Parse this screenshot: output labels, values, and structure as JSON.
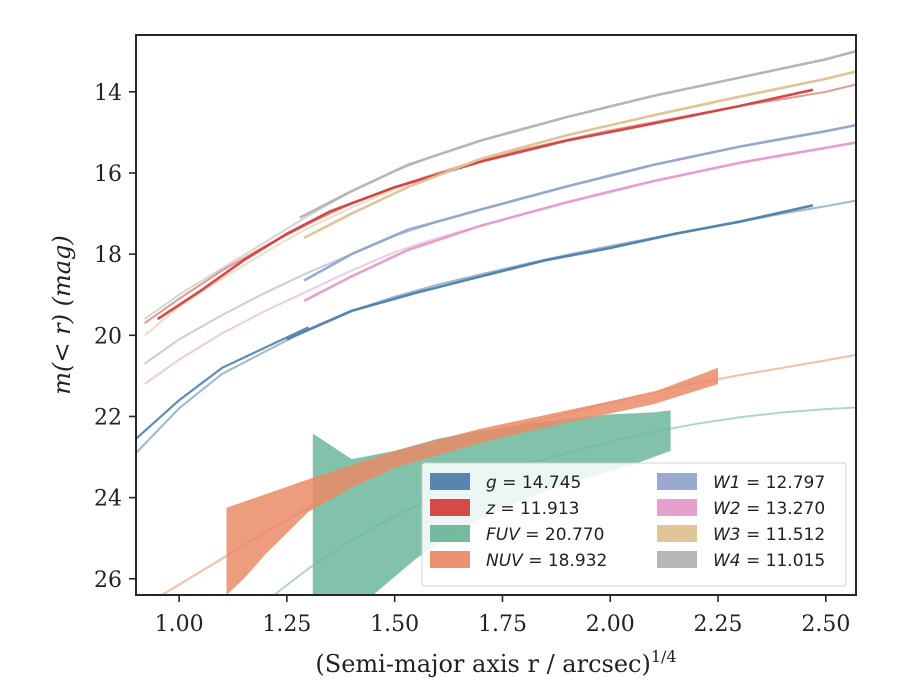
{
  "chart_data": {
    "type": "line",
    "xlabel": "(Semi-major axis r / arcsec)",
    "xlabel_sup": "1/4",
    "ylabel": "m(< r) (mag)",
    "xlim": [
      0.9,
      2.57
    ],
    "ylim": [
      26.4,
      12.6
    ],
    "y_inverted": true,
    "xticks": [
      1.0,
      1.25,
      1.5,
      1.75,
      2.0,
      2.25,
      2.5
    ],
    "xtick_labels": [
      "1.00",
      "1.25",
      "1.50",
      "1.75",
      "2.00",
      "2.25",
      "2.50"
    ],
    "yticks": [
      14,
      16,
      18,
      20,
      22,
      24,
      26
    ],
    "ytick_labels": [
      "14",
      "16",
      "18",
      "20",
      "22",
      "24",
      "26"
    ],
    "grid": false,
    "legend_position": "lower-right",
    "legend": [
      {
        "band": "g",
        "value": "14.745",
        "color": "#4c7fac"
      },
      {
        "band": "z",
        "value": "11.913",
        "color": "#d43f3f"
      },
      {
        "band": "FUV",
        "value": "20.770",
        "color": "#6db79b"
      },
      {
        "band": "NUV",
        "value": "18.932",
        "color": "#ea8b66"
      },
      {
        "band": "W1",
        "value": "12.797",
        "color": "#93a4cc"
      },
      {
        "band": "W2",
        "value": "13.270",
        "color": "#e39ccb"
      },
      {
        "band": "W3",
        "value": "11.512",
        "color": "#dfc294"
      },
      {
        "band": "W4",
        "value": "11.015",
        "color": "#b3b3b3"
      }
    ],
    "series": [
      {
        "band": "g",
        "color": "#4c7fac",
        "model": [
          [
            0.9,
            22.9
          ],
          [
            1.0,
            21.8
          ],
          [
            1.1,
            20.95
          ],
          [
            1.2,
            20.4
          ],
          [
            1.3,
            19.85
          ],
          [
            1.4,
            19.4
          ],
          [
            1.5,
            19.05
          ],
          [
            1.6,
            18.75
          ],
          [
            1.7,
            18.5
          ],
          [
            1.8,
            18.25
          ],
          [
            1.9,
            18.02
          ],
          [
            2.0,
            17.8
          ],
          [
            2.1,
            17.6
          ],
          [
            2.2,
            17.4
          ],
          [
            2.3,
            17.2
          ],
          [
            2.4,
            17.0
          ],
          [
            2.5,
            16.82
          ],
          [
            2.57,
            16.68
          ]
        ],
        "model_offset": [
          [
            0.9,
            22.55
          ],
          [
            1.0,
            21.6
          ],
          [
            1.1,
            20.8
          ],
          [
            1.2,
            20.3
          ],
          [
            1.3,
            19.8
          ]
        ],
        "measured": [
          [
            1.25,
            20.1
          ],
          [
            1.4,
            19.4
          ],
          [
            1.55,
            18.95
          ],
          [
            1.7,
            18.55
          ],
          [
            1.85,
            18.15
          ],
          [
            2.0,
            17.85
          ],
          [
            2.15,
            17.5
          ],
          [
            2.3,
            17.2
          ],
          [
            2.47,
            16.8
          ]
        ]
      },
      {
        "band": "z",
        "color": "#d43f3f",
        "model": [
          [
            0.92,
            19.7
          ],
          [
            1.0,
            19.1
          ],
          [
            1.1,
            18.4
          ],
          [
            1.2,
            17.8
          ],
          [
            1.3,
            17.25
          ],
          [
            1.4,
            16.75
          ],
          [
            1.5,
            16.35
          ],
          [
            1.6,
            16.0
          ],
          [
            1.7,
            15.7
          ],
          [
            1.8,
            15.42
          ],
          [
            1.9,
            15.18
          ],
          [
            2.0,
            14.95
          ],
          [
            2.1,
            14.75
          ],
          [
            2.2,
            14.55
          ],
          [
            2.3,
            14.35
          ],
          [
            2.4,
            14.18
          ],
          [
            2.5,
            14.0
          ],
          [
            2.57,
            13.82
          ]
        ],
        "measured": [
          [
            0.95,
            19.6
          ],
          [
            1.05,
            18.9
          ],
          [
            1.15,
            18.15
          ],
          [
            1.25,
            17.5
          ],
          [
            1.35,
            16.95
          ],
          [
            1.5,
            16.35
          ],
          [
            1.7,
            15.72
          ],
          [
            1.9,
            15.2
          ],
          [
            2.1,
            14.78
          ],
          [
            2.3,
            14.35
          ],
          [
            2.47,
            13.95
          ]
        ]
      },
      {
        "band": "W1",
        "color": "#93a4cc",
        "model": [
          [
            0.92,
            20.7
          ],
          [
            1.0,
            20.1
          ],
          [
            1.1,
            19.5
          ],
          [
            1.2,
            18.95
          ],
          [
            1.3,
            18.45
          ],
          [
            1.4,
            18.0
          ],
          [
            1.5,
            17.55
          ],
          [
            1.6,
            17.2
          ],
          [
            1.7,
            16.9
          ],
          [
            1.8,
            16.6
          ],
          [
            1.9,
            16.33
          ],
          [
            2.0,
            16.05
          ],
          [
            2.1,
            15.8
          ],
          [
            2.2,
            15.57
          ],
          [
            2.3,
            15.35
          ],
          [
            2.4,
            15.15
          ],
          [
            2.5,
            14.97
          ],
          [
            2.57,
            14.82
          ]
        ],
        "measured": [
          [
            1.29,
            18.65
          ],
          [
            1.4,
            18.0
          ],
          [
            1.53,
            17.4
          ],
          [
            1.7,
            16.9
          ],
          [
            1.9,
            16.33
          ],
          [
            2.1,
            15.8
          ],
          [
            2.3,
            15.35
          ],
          [
            2.5,
            14.97
          ],
          [
            2.57,
            14.82
          ]
        ]
      },
      {
        "band": "W2",
        "color": "#e39ccb",
        "model": [
          [
            0.92,
            21.2
          ],
          [
            1.0,
            20.6
          ],
          [
            1.1,
            19.95
          ],
          [
            1.2,
            19.4
          ],
          [
            1.3,
            18.9
          ],
          [
            1.4,
            18.4
          ],
          [
            1.5,
            17.95
          ],
          [
            1.6,
            17.6
          ],
          [
            1.7,
            17.3
          ],
          [
            1.8,
            17.0
          ],
          [
            1.9,
            16.72
          ],
          [
            2.0,
            16.45
          ],
          [
            2.1,
            16.2
          ],
          [
            2.2,
            15.97
          ],
          [
            2.3,
            15.75
          ],
          [
            2.4,
            15.55
          ],
          [
            2.5,
            15.38
          ],
          [
            2.57,
            15.25
          ]
        ],
        "measured": [
          [
            1.29,
            19.15
          ],
          [
            1.4,
            18.55
          ],
          [
            1.53,
            17.9
          ],
          [
            1.7,
            17.3
          ],
          [
            1.9,
            16.72
          ],
          [
            2.1,
            16.2
          ],
          [
            2.3,
            15.75
          ],
          [
            2.5,
            15.38
          ],
          [
            2.57,
            15.25
          ]
        ]
      },
      {
        "band": "W3",
        "color": "#dfc294",
        "model": [
          [
            0.92,
            20.0
          ],
          [
            1.0,
            19.3
          ],
          [
            1.1,
            18.6
          ],
          [
            1.2,
            17.95
          ],
          [
            1.3,
            17.35
          ],
          [
            1.4,
            16.85
          ],
          [
            1.5,
            16.4
          ],
          [
            1.6,
            16.0
          ],
          [
            1.7,
            15.65
          ],
          [
            1.8,
            15.35
          ],
          [
            1.9,
            15.07
          ],
          [
            2.0,
            14.82
          ],
          [
            2.1,
            14.58
          ],
          [
            2.2,
            14.35
          ],
          [
            2.3,
            14.12
          ],
          [
            2.4,
            13.9
          ],
          [
            2.5,
            13.68
          ],
          [
            2.57,
            13.5
          ]
        ],
        "measured": [
          [
            1.29,
            17.6
          ],
          [
            1.4,
            17.0
          ],
          [
            1.53,
            16.35
          ],
          [
            1.7,
            15.65
          ],
          [
            1.9,
            15.07
          ],
          [
            2.1,
            14.58
          ],
          [
            2.3,
            14.12
          ],
          [
            2.5,
            13.68
          ],
          [
            2.57,
            13.5
          ]
        ]
      },
      {
        "band": "W4",
        "color": "#b3b3b3",
        "model": [
          [
            0.92,
            19.6
          ],
          [
            1.0,
            19.0
          ],
          [
            1.1,
            18.35
          ],
          [
            1.2,
            17.7
          ],
          [
            1.3,
            17.05
          ],
          [
            1.4,
            16.45
          ],
          [
            1.5,
            15.95
          ],
          [
            1.6,
            15.55
          ],
          [
            1.7,
            15.2
          ],
          [
            1.8,
            14.9
          ],
          [
            1.9,
            14.62
          ],
          [
            2.0,
            14.35
          ],
          [
            2.1,
            14.1
          ],
          [
            2.2,
            13.87
          ],
          [
            2.3,
            13.65
          ],
          [
            2.4,
            13.42
          ],
          [
            2.5,
            13.2
          ],
          [
            2.57,
            13.0
          ]
        ],
        "measured": [
          [
            1.28,
            17.1
          ],
          [
            1.4,
            16.45
          ],
          [
            1.53,
            15.8
          ],
          [
            1.7,
            15.2
          ],
          [
            1.9,
            14.62
          ],
          [
            2.1,
            14.1
          ],
          [
            2.3,
            13.65
          ],
          [
            2.5,
            13.2
          ],
          [
            2.57,
            13.0
          ]
        ]
      },
      {
        "band": "NUV",
        "color": "#ea8b66",
        "model": [
          [
            0.96,
            26.4
          ],
          [
            1.1,
            25.5
          ],
          [
            1.2,
            24.85
          ],
          [
            1.3,
            24.25
          ],
          [
            1.4,
            23.7
          ],
          [
            1.5,
            23.25
          ],
          [
            1.6,
            22.85
          ],
          [
            1.7,
            22.5
          ],
          [
            1.8,
            22.2
          ],
          [
            1.9,
            21.92
          ],
          [
            2.0,
            21.65
          ],
          [
            2.1,
            21.4
          ],
          [
            2.2,
            21.18
          ],
          [
            2.3,
            20.98
          ],
          [
            2.4,
            20.8
          ],
          [
            2.5,
            20.62
          ],
          [
            2.57,
            20.48
          ]
        ],
        "band_upper": [
          [
            1.11,
            24.25
          ],
          [
            1.3,
            23.55
          ],
          [
            1.5,
            22.85
          ],
          [
            1.7,
            22.3
          ],
          [
            1.9,
            21.85
          ],
          [
            2.1,
            21.4
          ],
          [
            2.25,
            20.8
          ]
        ],
        "band_lower": [
          [
            1.11,
            26.4
          ],
          [
            1.15,
            26.0
          ],
          [
            1.2,
            25.4
          ],
          [
            1.3,
            24.35
          ],
          [
            1.4,
            23.75
          ],
          [
            1.5,
            23.25
          ],
          [
            1.7,
            22.65
          ],
          [
            1.9,
            22.15
          ],
          [
            2.1,
            21.7
          ],
          [
            2.25,
            21.2
          ]
        ]
      },
      {
        "band": "FUV",
        "color": "#6db79b",
        "model": [
          [
            1.22,
            26.4
          ],
          [
            1.3,
            25.75
          ],
          [
            1.4,
            25.05
          ],
          [
            1.5,
            24.45
          ],
          [
            1.6,
            23.95
          ],
          [
            1.7,
            23.55
          ],
          [
            1.8,
            23.2
          ],
          [
            1.9,
            22.9
          ],
          [
            2.0,
            22.62
          ],
          [
            2.1,
            22.38
          ],
          [
            2.2,
            22.18
          ],
          [
            2.3,
            22.02
          ],
          [
            2.4,
            21.9
          ],
          [
            2.5,
            21.82
          ],
          [
            2.57,
            21.78
          ]
        ],
        "band_upper": [
          [
            1.31,
            22.42
          ],
          [
            1.4,
            23.05
          ],
          [
            1.5,
            22.85
          ],
          [
            1.6,
            22.55
          ],
          [
            1.7,
            22.35
          ],
          [
            1.8,
            22.2
          ],
          [
            1.9,
            22.05
          ],
          [
            2.0,
            21.95
          ],
          [
            2.1,
            21.9
          ],
          [
            2.14,
            21.85
          ]
        ],
        "band_lower": [
          [
            1.31,
            26.4
          ],
          [
            1.45,
            26.4
          ],
          [
            1.55,
            25.5
          ],
          [
            1.65,
            24.8
          ],
          [
            1.75,
            24.25
          ],
          [
            1.85,
            23.85
          ],
          [
            1.95,
            23.5
          ],
          [
            2.05,
            23.2
          ],
          [
            2.14,
            22.85
          ]
        ]
      }
    ]
  }
}
